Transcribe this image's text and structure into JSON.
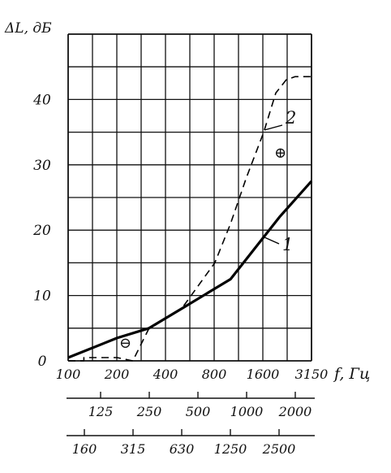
{
  "chart_data": {
    "type": "line",
    "ylabel": "ΔL, дБ",
    "xlabel": "f, Гц",
    "yticks": [
      "0",
      "10",
      "20",
      "30",
      "40"
    ],
    "ylim": [
      0,
      50
    ],
    "xticks_main": [
      "100",
      "200",
      "400",
      "800",
      "1600",
      "3150"
    ],
    "xticks_row2": [
      "125",
      "250",
      "500",
      "1000",
      "2000"
    ],
    "xticks_row3": [
      "160",
      "315",
      "630",
      "1250",
      "2500"
    ],
    "grid": true,
    "series": [
      {
        "name": "1",
        "style": "solid",
        "x": [
          100,
          200,
          315,
          500,
          1000,
          2000,
          3150
        ],
        "y": [
          0.5,
          3.5,
          5,
          8,
          12.5,
          22,
          27.5
        ]
      },
      {
        "name": "2",
        "style": "dashed",
        "x": [
          100,
          125,
          125,
          160,
          200,
          250,
          315,
          500,
          800,
          1000,
          1250,
          1600,
          1900,
          2200,
          2500,
          3150
        ],
        "y": [
          0,
          0,
          0.5,
          0.5,
          0.5,
          0,
          5,
          8,
          15,
          21,
          28,
          35,
          41,
          43,
          43.5,
          43.5
        ]
      }
    ],
    "annotations": {
      "minus_symbol": "⊖",
      "plus_symbol": "⊕"
    }
  }
}
